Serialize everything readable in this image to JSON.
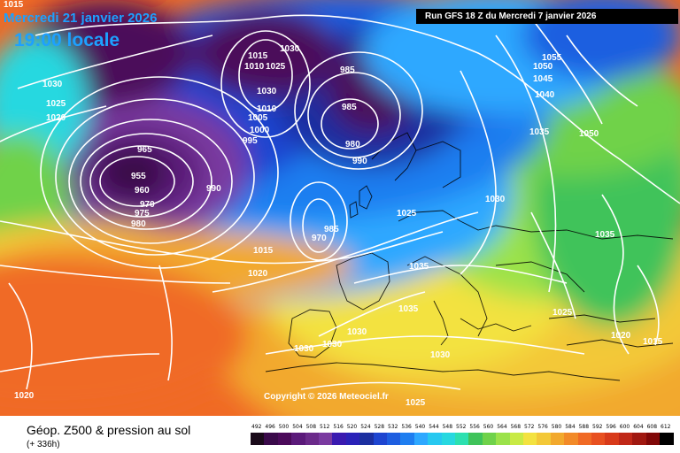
{
  "header": {
    "date_title": "Mercredi 21 janvier 2026",
    "local_time": "19:00 locale",
    "run_banner": "Run GFS 18 Z du Mercredi 7 janvier 2026"
  },
  "footer": {
    "title": "Géop. Z500 & pression au sol",
    "subtitle": "(+ 336h)",
    "copyright": "Copyright © 2026 Meteociel.fr"
  },
  "colors": {
    "background_deep": "#4b0a5a",
    "low_purple": "#6b2a8a",
    "dark_blue": "#1c2fa0",
    "blue": "#1e5ee0",
    "light_blue": "#2ea8ff",
    "cyan": "#27d8e0",
    "green": "#3fc35a",
    "light_green": "#9be24a",
    "yellow": "#f3e240",
    "orange": "#f2a92d",
    "red_orange": "#f06a25",
    "isobar": "#ffffff"
  },
  "isobar_labels": [
    {
      "text": "1015",
      "pos": "far-left top"
    },
    {
      "text": "1030",
      "pos": "left"
    },
    {
      "text": "1025",
      "pos": "left"
    },
    {
      "text": "1020",
      "pos": "left"
    },
    {
      "text": "965",
      "pos": "low center"
    },
    {
      "text": "955",
      "pos": "low center"
    },
    {
      "text": "960",
      "pos": "low center"
    },
    {
      "text": "970",
      "pos": "low center"
    },
    {
      "text": "975",
      "pos": "low center"
    },
    {
      "text": "980",
      "pos": "low center"
    },
    {
      "text": "990",
      "pos": "low east"
    },
    {
      "text": "1015",
      "pos": "north"
    },
    {
      "text": "1030",
      "pos": "north"
    },
    {
      "text": "1025",
      "pos": "north"
    },
    {
      "text": "1010",
      "pos": "north"
    },
    {
      "text": "1030",
      "pos": "north"
    },
    {
      "text": "1010",
      "pos": "north"
    },
    {
      "text": "1005",
      "pos": "north"
    },
    {
      "text": "1000",
      "pos": "north"
    },
    {
      "text": "995",
      "pos": "north"
    },
    {
      "text": "985",
      "pos": "scandinavia low"
    },
    {
      "text": "985",
      "pos": "scandinavia low"
    },
    {
      "text": "980",
      "pos": "scandinavia low"
    },
    {
      "text": "990",
      "pos": "scandinavia low"
    },
    {
      "text": "985",
      "pos": "biscay low"
    },
    {
      "text": "970",
      "pos": "biscay low"
    },
    {
      "text": "1015",
      "pos": "atlantic"
    },
    {
      "text": "1020",
      "pos": "atlantic"
    },
    {
      "text": "1025",
      "pos": "europe"
    },
    {
      "text": "1030",
      "pos": "europe"
    },
    {
      "text": "1035",
      "pos": "europe"
    },
    {
      "text": "1035",
      "pos": "europe"
    },
    {
      "text": "1030",
      "pos": "iberia"
    },
    {
      "text": "1030",
      "pos": "iberia"
    },
    {
      "text": "1030",
      "pos": "iberia"
    },
    {
      "text": "1030",
      "pos": "mediterranean"
    },
    {
      "text": "1025",
      "pos": "mediterranean"
    },
    {
      "text": "1020",
      "pos": "south-west"
    },
    {
      "text": "1055",
      "pos": "north-east"
    },
    {
      "text": "1050",
      "pos": "north-east"
    },
    {
      "text": "1045",
      "pos": "north-east"
    },
    {
      "text": "1040",
      "pos": "north-east"
    },
    {
      "text": "1035",
      "pos": "north-east"
    },
    {
      "text": "1050",
      "pos": "north-east"
    },
    {
      "text": "1035",
      "pos": "east"
    },
    {
      "text": "1025",
      "pos": "east"
    },
    {
      "text": "1020",
      "pos": "east"
    },
    {
      "text": "1015",
      "pos": "east"
    }
  ],
  "scale_values": [
    "492",
    "496",
    "500",
    "504",
    "508",
    "512",
    "516",
    "520",
    "524",
    "528",
    "532",
    "536",
    "540",
    "544",
    "548",
    "552",
    "556",
    "560",
    "564",
    "568",
    "572",
    "576",
    "580",
    "584",
    "588",
    "592",
    "596",
    "600",
    "604",
    "608",
    "612"
  ],
  "scale_colors": [
    "#1a0a1a",
    "#3a0a4a",
    "#4b0a5a",
    "#5b1a7a",
    "#6b2a8a",
    "#7a3aa0",
    "#3a1ab0",
    "#2a22b8",
    "#1c2fa0",
    "#1e45d0",
    "#1e5ee0",
    "#1f7ef0",
    "#2ea8ff",
    "#27c8f0",
    "#27d8e0",
    "#2ce0b0",
    "#3fc35a",
    "#6fd24a",
    "#9be24a",
    "#c8ea45",
    "#f3e240",
    "#f3c838",
    "#f2a92d",
    "#f28a28",
    "#f06a25",
    "#e85020",
    "#d83a1a",
    "#c02818",
    "#a01810",
    "#800808",
    "#000000"
  ]
}
